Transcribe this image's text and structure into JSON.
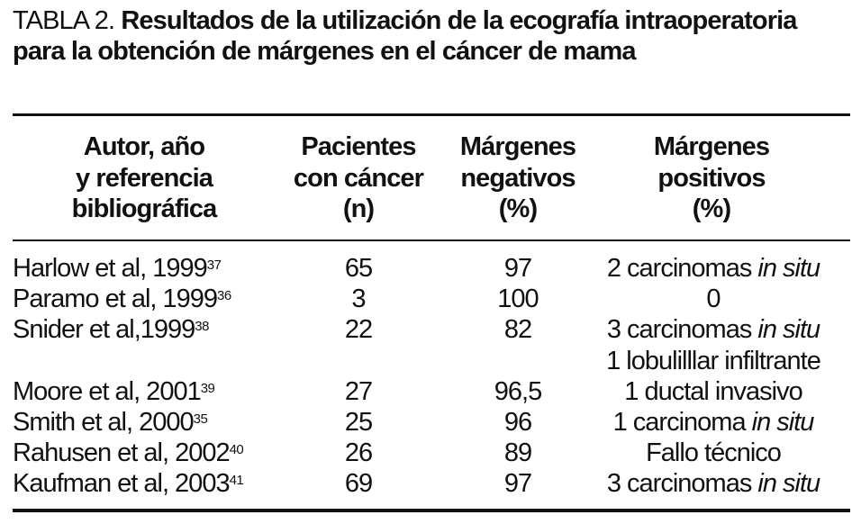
{
  "title": {
    "label": "TABLA 2.",
    "text": "Resultados de la utilización de la ecografía intraoperatoria para la obtención de márgenes en el cáncer de mama"
  },
  "headers": [
    [
      "Autor, año",
      "y referencia",
      "bibliográfica"
    ],
    [
      "Pacientes",
      "con cáncer",
      "(n)"
    ],
    [
      "Márgenes",
      "negativos",
      "(%)"
    ],
    [
      "Márgenes",
      "positivos",
      "(%)"
    ]
  ],
  "rows": [
    {
      "author": "Harlow et al, 1999",
      "ref": "37",
      "n": "65",
      "neg": "97",
      "pos": "2 carcinomas ",
      "pos_italic": "in situ"
    },
    {
      "author": "Paramo et al, 1999",
      "ref": "36",
      "n": "3",
      "neg": "100",
      "pos": "0",
      "pos_italic": ""
    },
    {
      "author": "Snider et al,1999",
      "ref": "38",
      "n": "22",
      "neg": "82",
      "pos": "3 carcinomas ",
      "pos_italic": "in situ"
    },
    {
      "author": "",
      "ref": "",
      "n": "",
      "neg": "",
      "pos": "1 lobulilllar infiltrante",
      "pos_italic": ""
    },
    {
      "author": "Moore et al, 2001",
      "ref": "39",
      "n": "27",
      "neg": "96,5",
      "pos": "1 ductal invasivo",
      "pos_italic": ""
    },
    {
      "author": "Smith et al, 2000",
      "ref": "35",
      "n": "25",
      "neg": "96",
      "pos": "1 carcinoma ",
      "pos_italic": "in situ"
    },
    {
      "author": "Rahusen et al, 2002",
      "ref": "40",
      "n": "26",
      "neg": "89",
      "pos": "Fallo técnico",
      "pos_italic": ""
    },
    {
      "author": "Kaufman et al, 2003",
      "ref": "41",
      "n": "69",
      "neg": "97",
      "pos": "3 carcinomas ",
      "pos_italic": "in situ"
    }
  ]
}
